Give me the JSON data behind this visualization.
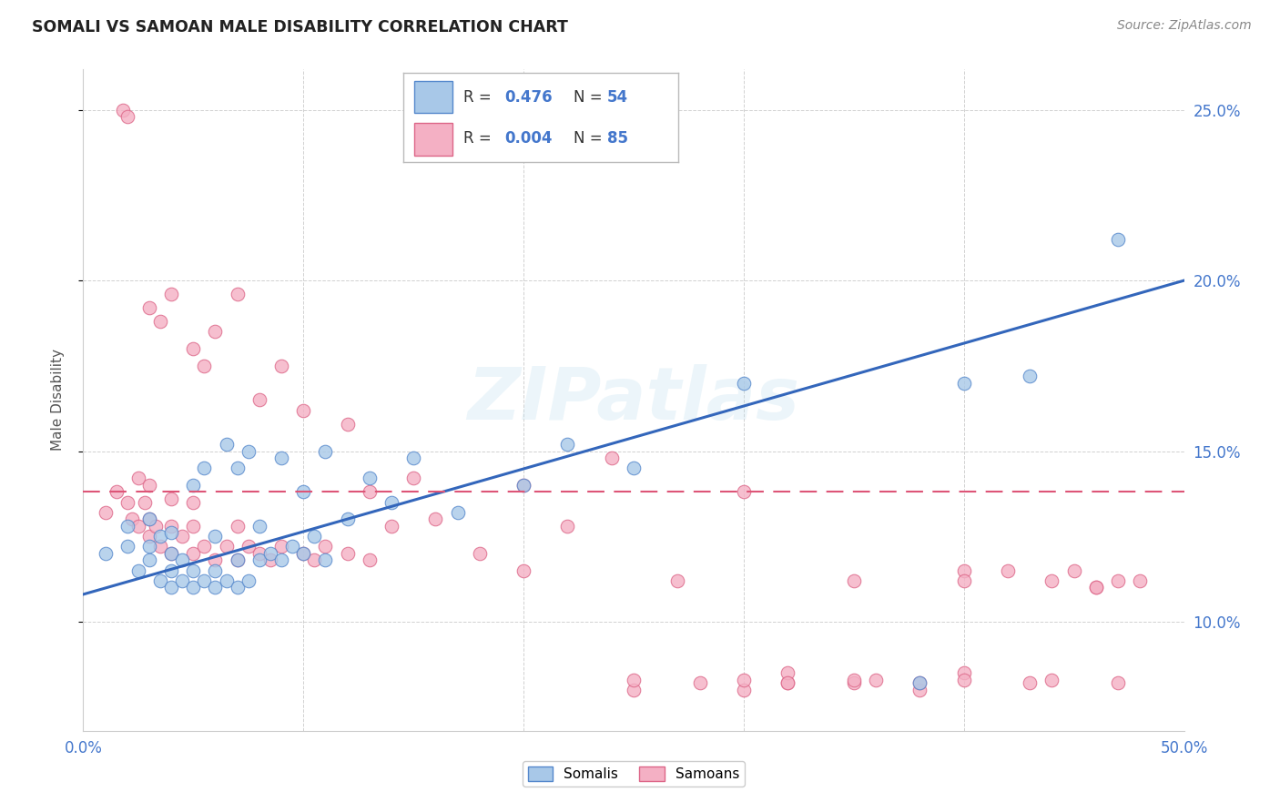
{
  "title": "SOMALI VS SAMOAN MALE DISABILITY CORRELATION CHART",
  "source": "Source: ZipAtlas.com",
  "ylabel": "Male Disability",
  "xlim": [
    0.0,
    0.5
  ],
  "ylim": [
    0.068,
    0.262
  ],
  "yticks": [
    0.1,
    0.15,
    0.2,
    0.25
  ],
  "ytick_labels": [
    "10.0%",
    "15.0%",
    "20.0%",
    "25.0%"
  ],
  "xticks": [
    0.0,
    0.1,
    0.2,
    0.3,
    0.4,
    0.5
  ],
  "xtick_labels": [
    "0.0%",
    "",
    "",
    "",
    "",
    "50.0%"
  ],
  "somali_color": "#a8c8e8",
  "samoan_color": "#f4b0c4",
  "somali_edge": "#5588cc",
  "samoan_edge": "#dd6688",
  "trendline_somali_color": "#3366bb",
  "trendline_samoan_color": "#dd5577",
  "legend_R_somali": "0.476",
  "legend_N_somali": "54",
  "legend_R_samoan": "0.004",
  "legend_N_samoan": "85",
  "watermark": "ZIPatlas",
  "bg_color": "#ffffff",
  "grid_color": "#cccccc",
  "title_color": "#222222",
  "right_tick_color": "#4477cc",
  "somali_trendline_x0": 0.0,
  "somali_trendline_y0": 0.108,
  "somali_trendline_x1": 0.5,
  "somali_trendline_y1": 0.2,
  "samoan_trendline_y": 0.138,
  "somali_x": [
    0.01,
    0.02,
    0.02,
    0.025,
    0.03,
    0.03,
    0.03,
    0.035,
    0.035,
    0.04,
    0.04,
    0.04,
    0.04,
    0.045,
    0.045,
    0.05,
    0.05,
    0.05,
    0.055,
    0.055,
    0.06,
    0.06,
    0.06,
    0.065,
    0.065,
    0.07,
    0.07,
    0.07,
    0.075,
    0.075,
    0.08,
    0.08,
    0.085,
    0.09,
    0.09,
    0.095,
    0.1,
    0.1,
    0.105,
    0.11,
    0.11,
    0.12,
    0.13,
    0.14,
    0.15,
    0.17,
    0.2,
    0.22,
    0.25,
    0.3,
    0.38,
    0.4,
    0.43,
    0.47
  ],
  "somali_y": [
    0.12,
    0.122,
    0.128,
    0.115,
    0.118,
    0.122,
    0.13,
    0.112,
    0.125,
    0.11,
    0.115,
    0.12,
    0.126,
    0.112,
    0.118,
    0.11,
    0.115,
    0.14,
    0.112,
    0.145,
    0.11,
    0.115,
    0.125,
    0.112,
    0.152,
    0.11,
    0.118,
    0.145,
    0.112,
    0.15,
    0.118,
    0.128,
    0.12,
    0.118,
    0.148,
    0.122,
    0.12,
    0.138,
    0.125,
    0.118,
    0.15,
    0.13,
    0.142,
    0.135,
    0.148,
    0.132,
    0.14,
    0.152,
    0.145,
    0.17,
    0.082,
    0.17,
    0.172,
    0.212
  ],
  "samoan_x": [
    0.01,
    0.015,
    0.018,
    0.02,
    0.02,
    0.022,
    0.025,
    0.025,
    0.028,
    0.03,
    0.03,
    0.03,
    0.03,
    0.033,
    0.035,
    0.035,
    0.04,
    0.04,
    0.04,
    0.04,
    0.045,
    0.05,
    0.05,
    0.05,
    0.05,
    0.055,
    0.055,
    0.06,
    0.06,
    0.065,
    0.07,
    0.07,
    0.07,
    0.075,
    0.08,
    0.08,
    0.085,
    0.09,
    0.09,
    0.1,
    0.1,
    0.105,
    0.11,
    0.12,
    0.12,
    0.13,
    0.13,
    0.14,
    0.15,
    0.16,
    0.18,
    0.2,
    0.22,
    0.24,
    0.27,
    0.3,
    0.32,
    0.35,
    0.38,
    0.4,
    0.43,
    0.45,
    0.46,
    0.47,
    0.2,
    0.25,
    0.28,
    0.3,
    0.32,
    0.35,
    0.38,
    0.4,
    0.42,
    0.44,
    0.46,
    0.48,
    0.25,
    0.3,
    0.35,
    0.4,
    0.44,
    0.47,
    0.32,
    0.36,
    0.4
  ],
  "samoan_y": [
    0.132,
    0.138,
    0.25,
    0.135,
    0.248,
    0.13,
    0.128,
    0.142,
    0.135,
    0.125,
    0.13,
    0.14,
    0.192,
    0.128,
    0.122,
    0.188,
    0.12,
    0.128,
    0.136,
    0.196,
    0.125,
    0.12,
    0.128,
    0.135,
    0.18,
    0.122,
    0.175,
    0.118,
    0.185,
    0.122,
    0.118,
    0.128,
    0.196,
    0.122,
    0.12,
    0.165,
    0.118,
    0.122,
    0.175,
    0.12,
    0.162,
    0.118,
    0.122,
    0.12,
    0.158,
    0.118,
    0.138,
    0.128,
    0.142,
    0.13,
    0.12,
    0.115,
    0.128,
    0.148,
    0.112,
    0.138,
    0.082,
    0.112,
    0.08,
    0.115,
    0.082,
    0.115,
    0.11,
    0.112,
    0.14,
    0.08,
    0.082,
    0.08,
    0.085,
    0.082,
    0.082,
    0.112,
    0.115,
    0.112,
    0.11,
    0.112,
    0.083,
    0.083,
    0.083,
    0.085,
    0.083,
    0.082,
    0.082,
    0.083,
    0.083
  ]
}
